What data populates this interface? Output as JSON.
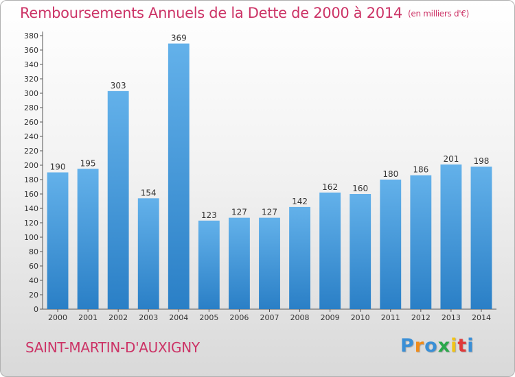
{
  "title": "Remboursements Annuels de la Dette de 2000 à 2014",
  "unit": "(en milliers d'€)",
  "town": "SAINT-MARTIN-D'AUXIGNY",
  "logo": {
    "text": "Proxiti",
    "letters": [
      "P",
      "r",
      "o",
      "x",
      "i",
      "t",
      "i"
    ],
    "colors": [
      "#3a8fd6",
      "#f08c1a",
      "#3a8fd6",
      "#2aa84a",
      "#f0c419",
      "#e03a3a",
      "#3a8fd6"
    ]
  },
  "colors": {
    "title": "#cc3366",
    "bar_light": "#63b1ea",
    "bar_dark": "#2a7fc6",
    "axis": "#555555"
  },
  "chart_data": {
    "type": "bar",
    "categories": [
      "2000",
      "2001",
      "2002",
      "2003",
      "2004",
      "2005",
      "2006",
      "2007",
      "2008",
      "2009",
      "2010",
      "2011",
      "2012",
      "2013",
      "2014"
    ],
    "values": [
      190,
      195,
      303,
      154,
      369,
      123,
      127,
      127,
      142,
      162,
      160,
      180,
      186,
      201,
      198
    ],
    "ylim": [
      0,
      380
    ],
    "ytick_step": 20,
    "grid": false,
    "legend": "none"
  }
}
